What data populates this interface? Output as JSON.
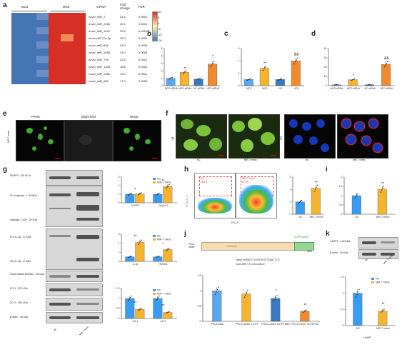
{
  "panels": {
    "a": "a",
    "b": "b",
    "c": "c",
    "d": "d",
    "e": "e",
    "f": "f",
    "g": "g",
    "h": "h",
    "i": "i",
    "j": "j",
    "k": "k"
  },
  "heatmap": {
    "group_mcs": "MCS",
    "group_mcd": "MCD",
    "col_mirna": "miRNA",
    "col_fold": "Fold change",
    "col_fdr": "FDR",
    "rows": [
      {
        "mirna": "novel_miR_7",
        "fold": "33.5",
        "fdr": "0.0001"
      },
      {
        "mirna": "novel_miR_2084",
        "fold": "29.0",
        "fdr": "0.0001"
      },
      {
        "mirna": "novel_miR_1120",
        "fold": "25.3",
        "fdr": "0.0001"
      },
      {
        "mirna": "mmu-miR-27a-5p",
        "fold": "25.0",
        "fdr": "0.0002"
      },
      {
        "mirna": "novel_miR_836",
        "fold": "23.0",
        "fdr": "0.0005"
      },
      {
        "mirna": "novel_miR_1089",
        "fold": "23.0",
        "fdr": "0.0005"
      },
      {
        "mirna": "novel_miR_705",
        "fold": "22.8",
        "fdr": "0.0001"
      },
      {
        "mirna": "novel_miR_1383",
        "fold": "18.6",
        "fdr": "0.0034"
      },
      {
        "mirna": "novel_miR_2352",
        "fold": "19.0",
        "fdr": "0.0001"
      },
      {
        "mirna": "novel_miR_282",
        "fold": "17.0",
        "fdr": "0.0053"
      }
    ],
    "scale_ticks": [
      "10",
      "5",
      "0",
      "-5",
      "-10",
      "-20"
    ],
    "colors": {
      "high": "#d62f27",
      "mid": "#fdf5b0",
      "low": "#4575b4"
    }
  },
  "panel_b": {
    "sig": [
      "**",
      "*"
    ]
  },
  "panel_c": {
    "sig": [
      "**",
      "&&"
    ]
  },
  "panel_d": {
    "sig": [
      "*",
      "&&"
    ]
  },
  "panel_e": {
    "headers": [
      "FPKM",
      "Bright field",
      "Merge"
    ],
    "row_label": "MiR-7 mimic"
  },
  "panel_f": {
    "row_left": "AB",
    "row_right": "MR",
    "labels": [
      "NC",
      "MiR-7 mimic",
      "NC",
      "MiR-7 mimic"
    ]
  },
  "panel_g": {
    "blot_labels": [
      "NLRP3 : 110 kD a",
      "Pro-caspase-1 : 45 kDa",
      "caspase-1 p20 : 20 kDa",
      "Pro-IL-1β : 37 kDa",
      "Cle-IL-1β : 17 kDa",
      "Supernatant-HMGB1 : 30 kDa",
      "ZO-1 : 220 kDa",
      "ZO-2 : 160 kDa",
      "β-actin : 43 kDa"
    ],
    "x_labels": [
      "NC",
      "MiR-7 mimic"
    ],
    "legend": [
      "NC",
      "MiR-7 mimic"
    ],
    "sig": [
      "*",
      "**",
      "**",
      "*",
      "**",
      "**"
    ],
    "chart_groups": [
      [
        "NLRP3",
        "Cst.pre-1"
      ],
      [
        "IL-1β",
        "HMGB1"
      ],
      [
        "ZO-1",
        "ZO-2"
      ]
    ]
  },
  "panel_h": {
    "ylab": "FLICA-FL-1",
    "xlab": "FSC-A",
    "gate_nc": "NC",
    "gate_nc_pct": "25.6%",
    "gate_mim": "MiR-7 mimic",
    "gate_mim_pct": "67.6%",
    "sig": "**",
    "x_labels": [
      "NC",
      "MiR-7 mimic"
    ]
  },
  "panel_i": {
    "sig": "**",
    "x_labels": [
      "NC",
      "MiR-7 mimic"
    ]
  },
  "panel_j": {
    "utr_label": "3'UTR Lamp1",
    "xbai": "XbaI",
    "vector1": "PGL3",
    "vector2": "vector",
    "luciferase": "Luciferase",
    "seq1": "Lamp1 mRNA 5'-TGGGGGGCTGAACTC-3'",
    "seq2": "novel-miR-7 3'-CCCCGAC-5'",
    "sig": [
      "*",
      "**"
    ],
    "x_labels": [
      "PGL3-basic",
      "PGL3-Lamp1 3'UTR",
      "PGL3-Lamp1 3'UTR+MiR7",
      "PGL3-Lamp1 3'UTR+NC"
    ]
  },
  "panel_k": {
    "blot_labels": [
      "LAMP1 : 120 kDa",
      "β-actin : 43 kDa"
    ],
    "x_labels": [
      "NC",
      "MiR-7 mimic"
    ],
    "legend": [
      "NC",
      "MiR-7 mimic"
    ],
    "sig": "**",
    "xlab": "LAMP"
  },
  "chart_data": [
    {
      "type": "bar",
      "panel": "b",
      "categories": [
        "MCS siRNA",
        "MCD siRNA",
        "NC siRNA",
        "HFD siRNA"
      ],
      "values": [
        1.0,
        1.8,
        0.9,
        2.9
      ],
      "ylim": [
        0,
        5
      ]
    },
    {
      "type": "bar",
      "panel": "c",
      "categories": [
        "MCS",
        "MCD",
        "NC",
        "HFD"
      ],
      "values": [
        1.0,
        2.8,
        1.0,
        4.0
      ],
      "ylim": [
        0,
        6
      ]
    },
    {
      "type": "bar",
      "panel": "d",
      "categories": [
        "MCS siRNA",
        "MCD siRNA",
        "NC siRNA",
        "HFD siRNA"
      ],
      "values": [
        1.0,
        6.5,
        1.0,
        23.0
      ],
      "ylim": [
        0,
        40
      ]
    },
    {
      "type": "bar",
      "panel": "g1",
      "categories": [
        "NLRP3",
        "Cst.pre-1"
      ],
      "series": [
        {
          "name": "NC",
          "values": [
            1.0,
            1.0
          ]
        },
        {
          "name": "MiR-7 mimic",
          "values": [
            1.05,
            1.9
          ]
        }
      ],
      "ylim": [
        0,
        3
      ]
    },
    {
      "type": "bar",
      "panel": "g2",
      "categories": [
        "IL-1β",
        "HMGB1"
      ],
      "series": [
        {
          "name": "NC",
          "values": [
            1.0,
            1.0
          ]
        },
        {
          "name": "MiR-7 mimic",
          "values": [
            4.2,
            2.6
          ]
        }
      ],
      "ylim": [
        0,
        6
      ]
    },
    {
      "type": "bar",
      "panel": "g3",
      "categories": [
        "ZO-1",
        "ZO-2"
      ],
      "series": [
        {
          "name": "NC",
          "values": [
            1.0,
            1.0
          ]
        },
        {
          "name": "MiR-7 mimic",
          "values": [
            0.45,
            0.3
          ]
        }
      ],
      "ylim": [
        0,
        1.5
      ]
    },
    {
      "type": "bar",
      "panel": "h",
      "categories": [
        "NC",
        "MiR-7 mimic"
      ],
      "values": [
        1.0,
        2.1
      ],
      "ylim": [
        0,
        3
      ]
    },
    {
      "type": "bar",
      "panel": "i",
      "categories": [
        "NC",
        "MiR-7 mimic"
      ],
      "values": [
        1.0,
        1.35
      ],
      "ylim": [
        0,
        2
      ]
    },
    {
      "type": "bar",
      "panel": "j",
      "categories": [
        "PGL3-basic",
        "PGL3-Lamp1 3'UTR",
        "PGL3-Lamp1 3'UTR+MiR7",
        "PGL3-Lamp1 3'UTR+NC"
      ],
      "values": [
        1.0,
        0.9,
        0.75,
        0.33
      ],
      "ylim": [
        0,
        1.5
      ]
    },
    {
      "type": "bar",
      "panel": "k",
      "categories": [
        "NC",
        "MiR-7 mimic"
      ],
      "values": [
        1.0,
        0.45
      ],
      "ylim": [
        0,
        1.5
      ]
    }
  ]
}
